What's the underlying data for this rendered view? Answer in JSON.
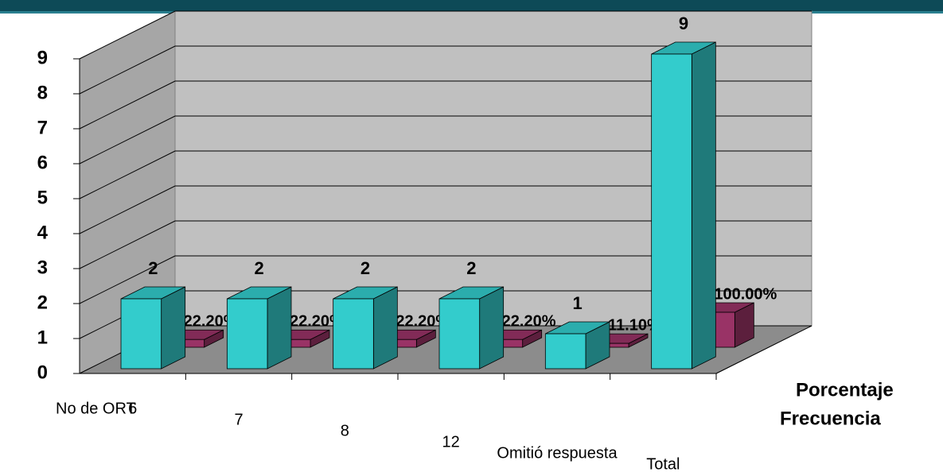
{
  "chart_data": {
    "type": "bar",
    "x_label": "No de ORT",
    "categories": [
      "6",
      "7",
      "8",
      "12",
      "Omitió respuesta",
      "Total"
    ],
    "series": [
      {
        "name": "Frecuencia",
        "color": "#33cccc",
        "values": [
          2,
          2,
          2,
          2,
          1,
          9
        ]
      },
      {
        "name": "Porcentaje",
        "color": "#993366",
        "values": [
          0.222,
          0.222,
          0.222,
          0.222,
          0.111,
          1
        ],
        "value_labels": [
          "22.20%",
          "22.20%",
          "22.20%",
          "22.20%",
          "11.10%",
          "100.00%"
        ]
      }
    ],
    "ylim": [
      0,
      9
    ],
    "yticks": [
      0,
      1,
      2,
      3,
      4,
      5,
      6,
      7,
      8,
      9
    ],
    "grid": true
  }
}
